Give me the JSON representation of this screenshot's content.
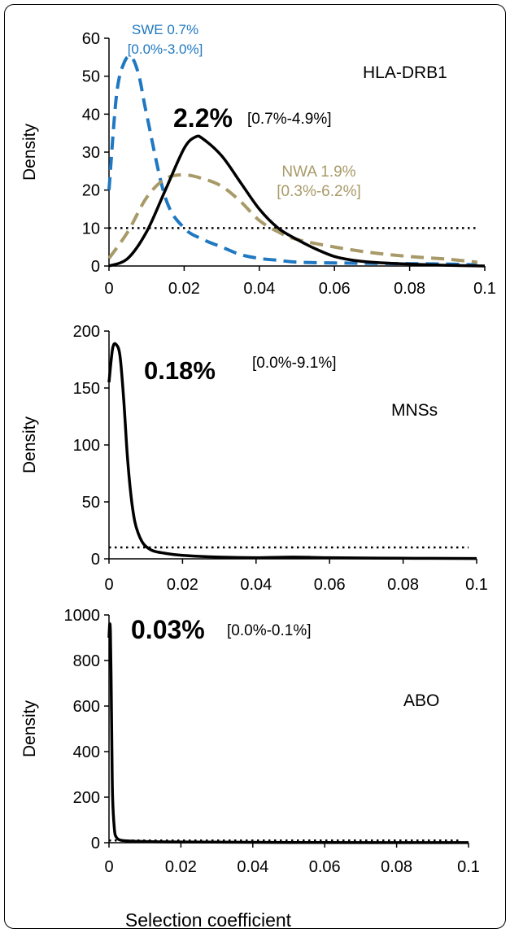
{
  "x_title": "Selection coefficient",
  "chart_data": [
    {
      "type": "line",
      "ylabel": "Density",
      "xlim": [
        0,
        0.1
      ],
      "ylim": [
        0,
        60
      ],
      "x_ticks": [
        0,
        0.02,
        0.04,
        0.06,
        0.08,
        0.1
      ],
      "x_tick_labels": [
        "0",
        "0.02",
        "0.04",
        "0.06",
        "0.08",
        "0.1"
      ],
      "y_ticks": [
        0,
        10,
        20,
        30,
        40,
        50,
        60
      ],
      "y_tick_labels": [
        "0",
        "10",
        "20",
        "30",
        "40",
        "50",
        "60"
      ],
      "gene_label": "HLA-DRB1",
      "estimate_label": "2.2%",
      "interval_label": "[0.7%-4.9%]",
      "reference_line": {
        "y": 10,
        "style": "dotted"
      },
      "annotations": [
        {
          "lines": [
            "SWE 0.7%",
            "[0.0%-3.0%]"
          ],
          "color": "#1f78c1"
        },
        {
          "lines": [
            "NWA 1.9%",
            "[0.3%-6.2%]"
          ],
          "color": "#a89a68"
        }
      ],
      "series": [
        {
          "style": "solid",
          "color": "#000000",
          "x": [
            0,
            0.005,
            0.01,
            0.015,
            0.02,
            0.023,
            0.025,
            0.03,
            0.035,
            0.04,
            0.045,
            0.05,
            0.055,
            0.06,
            0.065,
            0.07,
            0.08,
            0.09,
            0.1
          ],
          "y": [
            0,
            2,
            9,
            20,
            31,
            34,
            33.5,
            29,
            22,
            15,
            10,
            7,
            4.5,
            2.5,
            1.5,
            1,
            0.5,
            0.2,
            0
          ]
        },
        {
          "style": "dashed",
          "color": "#1f78c1",
          "x": [
            0,
            0.002,
            0.004,
            0.006,
            0.008,
            0.01,
            0.015,
            0.02,
            0.025,
            0.03,
            0.035,
            0.04,
            0.045,
            0.05,
            0.06,
            0.07,
            0.08,
            0.09,
            0.098
          ],
          "y": [
            20,
            45,
            53.5,
            55,
            50,
            40,
            18,
            10,
            7,
            5,
            3,
            2,
            1.5,
            1,
            0.8,
            0.7,
            0.6,
            0.5,
            0.3
          ]
        },
        {
          "style": "dashed",
          "color": "#a89a68",
          "x": [
            0,
            0.005,
            0.01,
            0.015,
            0.02,
            0.025,
            0.03,
            0.035,
            0.04,
            0.045,
            0.05,
            0.06,
            0.07,
            0.08,
            0.09,
            0.098
          ],
          "y": [
            2,
            9,
            18,
            23,
            24,
            23,
            21,
            17,
            12,
            9,
            7,
            5,
            3.5,
            2.5,
            1.8,
            1
          ]
        }
      ]
    },
    {
      "type": "line",
      "ylabel": "Density",
      "xlim": [
        0,
        0.1
      ],
      "ylim": [
        0,
        200
      ],
      "x_ticks": [
        0,
        0.02,
        0.04,
        0.06,
        0.08,
        0.1
      ],
      "x_tick_labels": [
        "0",
        "0.02",
        "0.04",
        "0.06",
        "0.08",
        "0.1"
      ],
      "y_ticks": [
        0,
        50,
        100,
        150,
        200
      ],
      "y_tick_labels": [
        "0",
        "50",
        "100",
        "150",
        "200"
      ],
      "gene_label": "MNSs",
      "estimate_label": "0.18%",
      "interval_label": "[0.0%-9.1%]",
      "reference_line": {
        "y": 10,
        "style": "dotted"
      },
      "annotations": [],
      "series": [
        {
          "style": "solid",
          "color": "#000000",
          "x": [
            0,
            0.001,
            0.002,
            0.003,
            0.004,
            0.005,
            0.006,
            0.007,
            0.008,
            0.009,
            0.01,
            0.012,
            0.015,
            0.02,
            0.03,
            0.04,
            0.05,
            0.06,
            0.08,
            0.1
          ],
          "y": [
            155,
            185,
            188,
            178,
            140,
            90,
            55,
            33,
            22,
            15,
            11,
            7,
            5,
            3,
            1.5,
            1,
            1.5,
            1,
            0.5,
            0.3
          ]
        }
      ]
    },
    {
      "type": "line",
      "ylabel": "Density",
      "xlim": [
        0,
        0.1
      ],
      "ylim": [
        0,
        1000
      ],
      "x_ticks": [
        0,
        0.02,
        0.04,
        0.06,
        0.08,
        0.1
      ],
      "x_tick_labels": [
        "0",
        "0.02",
        "0.04",
        "0.06",
        "0.08",
        "0.1"
      ],
      "y_ticks": [
        0,
        200,
        400,
        600,
        800,
        1000
      ],
      "y_tick_labels": [
        "0",
        "200",
        "400",
        "600",
        "800",
        "1000"
      ],
      "gene_label": "ABO",
      "estimate_label": "0.03%",
      "interval_label": "[0.0%-0.1%]",
      "reference_line": {
        "y": 10,
        "style": "dotted"
      },
      "annotations": [],
      "series": [
        {
          "style": "solid",
          "color": "#000000",
          "x": [
            0,
            0.0002,
            0.0004,
            0.0006,
            0.0008,
            0.001,
            0.0015,
            0.002,
            0.003,
            0.005,
            0.01,
            0.02,
            0.05,
            0.1
          ],
          "y": [
            900,
            960,
            920,
            700,
            420,
            200,
            60,
            25,
            12,
            8,
            5,
            3,
            1,
            0.5
          ]
        }
      ]
    }
  ]
}
